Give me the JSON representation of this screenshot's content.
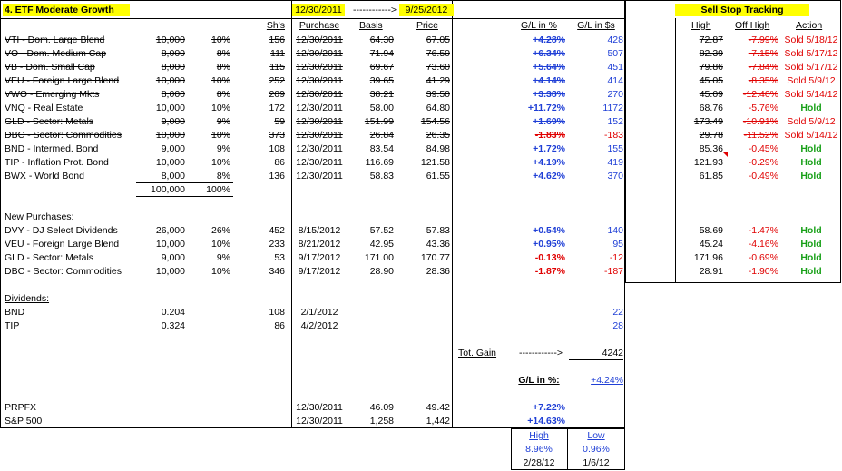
{
  "header": {
    "title": "4. ETF Moderate Growth",
    "date_start": "12/30/2011",
    "arrow": "------------>",
    "date_end": "9/25/2012",
    "sell_stop_title": "Sell Stop Tracking"
  },
  "columns": {
    "shares": "Sh's",
    "purchase": "Purchase",
    "basis": "Basis",
    "price": "Price",
    "gl_pct": "G/L in %",
    "gl_usd": "G/L in $s",
    "high": "High",
    "off_high": "Off High",
    "action": "Action"
  },
  "holdings": [
    {
      "name": "VTI - Dom. Large Blend",
      "amount": "10,000",
      "pct": "10%",
      "shares": "156",
      "date": "12/30/2011",
      "basis": "64.30",
      "price": "67.05",
      "gl_pct": "+4.28%",
      "gl_usd": "428",
      "high": "72.87",
      "off_high": "-7.99%",
      "action": "Sold 5/18/12",
      "sold": true
    },
    {
      "name": "VO - Dom. Medium Cap",
      "amount": "8,000",
      "pct": "8%",
      "shares": "111",
      "date": "12/30/2011",
      "basis": "71.94",
      "price": "76.50",
      "gl_pct": "+6.34%",
      "gl_usd": "507",
      "high": "82.39",
      "off_high": "-7.15%",
      "action": "Sold 5/17/12",
      "sold": true
    },
    {
      "name": "VB - Dom. Small Cap",
      "amount": "8,000",
      "pct": "8%",
      "shares": "115",
      "date": "12/30/2011",
      "basis": "69.67",
      "price": "73.60",
      "gl_pct": "+5.64%",
      "gl_usd": "451",
      "high": "79.86",
      "off_high": "-7.84%",
      "action": "Sold 5/17/12",
      "sold": true
    },
    {
      "name": "VEU - Foreign Large Blend",
      "amount": "10,000",
      "pct": "10%",
      "shares": "252",
      "date": "12/30/2011",
      "basis": "39.65",
      "price": "41.29",
      "gl_pct": "+4.14%",
      "gl_usd": "414",
      "high": "45.05",
      "off_high": "-8.35%",
      "action": "Sold 5/9/12",
      "sold": true
    },
    {
      "name": "VWO - Emerging Mkts",
      "amount": "8,000",
      "pct": "8%",
      "shares": "209",
      "date": "12/30/2011",
      "basis": "38.21",
      "price": "39.50",
      "gl_pct": "+3.38%",
      "gl_usd": "270",
      "high": "45.09",
      "off_high": "-12.40%",
      "action": "Sold 5/14/12",
      "sold": true
    },
    {
      "name": "VNQ - Real Estate",
      "amount": "10,000",
      "pct": "10%",
      "shares": "172",
      "date": "12/30/2011",
      "basis": "58.00",
      "price": "64.80",
      "gl_pct": "+11.72%",
      "gl_usd": "1172",
      "high": "68.76",
      "off_high": "-5.76%",
      "action": "Hold",
      "sold": false
    },
    {
      "name": "GLD - Sector: Metals",
      "amount": "9,000",
      "pct": "9%",
      "shares": "59",
      "date": "12/30/2011",
      "basis": "151.99",
      "price": "154.56",
      "gl_pct": "+1.69%",
      "gl_usd": "152",
      "high": "173.49",
      "off_high": "-10.91%",
      "action": "Sold 5/9/12",
      "sold": true
    },
    {
      "name": "DBC - Sector: Commodities",
      "amount": "10,000",
      "pct": "10%",
      "shares": "373",
      "date": "12/30/2011",
      "basis": "26.84",
      "price": "26.35",
      "gl_pct": "-1.83%",
      "gl_usd": "-183",
      "high": "29.78",
      "off_high": "-11.52%",
      "action": "Sold 5/14/12",
      "sold": true
    },
    {
      "name": "BND - Intermed. Bond",
      "amount": "9,000",
      "pct": "9%",
      "shares": "108",
      "date": "12/30/2011",
      "basis": "83.54",
      "price": "84.98",
      "gl_pct": "+1.72%",
      "gl_usd": "155",
      "high": "85.36",
      "off_high": "-0.45%",
      "action": "Hold",
      "sold": false
    },
    {
      "name": "TIP - Inflation Prot. Bond",
      "amount": "10,000",
      "pct": "10%",
      "shares": "86",
      "date": "12/30/2011",
      "basis": "116.69",
      "price": "121.58",
      "gl_pct": "+4.19%",
      "gl_usd": "419",
      "high": "121.93",
      "off_high": "-0.29%",
      "action": "Hold",
      "sold": false
    },
    {
      "name": "BWX - World Bond",
      "amount": "8,000",
      "pct": "8%",
      "shares": "136",
      "date": "12/30/2011",
      "basis": "58.83",
      "price": "61.55",
      "gl_pct": "+4.62%",
      "gl_usd": "370",
      "high": "61.85",
      "off_high": "-0.49%",
      "action": "Hold",
      "sold": false
    }
  ],
  "totals": {
    "amount": "100,000",
    "pct": "100%"
  },
  "new_purchases": {
    "label": "New Purchases:",
    "rows": [
      {
        "name": "DVY - DJ Select Dividends",
        "amount": "26,000",
        "pct": "26%",
        "shares": "452",
        "date": "8/15/2012",
        "basis": "57.52",
        "price": "57.83",
        "gl_pct": "+0.54%",
        "gl_usd": "140",
        "high": "58.69",
        "off_high": "-1.47%",
        "action": "Hold"
      },
      {
        "name": "VEU - Foreign Large Blend",
        "amount": "10,000",
        "pct": "10%",
        "shares": "233",
        "date": "8/21/2012",
        "basis": "42.95",
        "price": "43.36",
        "gl_pct": "+0.95%",
        "gl_usd": "95",
        "high": "45.24",
        "off_high": "-4.16%",
        "action": "Hold"
      },
      {
        "name": "GLD - Sector: Metals",
        "amount": "9,000",
        "pct": "9%",
        "shares": "53",
        "date": "9/17/2012",
        "basis": "171.00",
        "price": "170.77",
        "gl_pct": "-0.13%",
        "gl_usd": "-12",
        "high": "171.96",
        "off_high": "-0.69%",
        "action": "Hold"
      },
      {
        "name": "DBC - Sector: Commodities",
        "amount": "10,000",
        "pct": "10%",
        "shares": "346",
        "date": "9/17/2012",
        "basis": "28.90",
        "price": "28.36",
        "gl_pct": "-1.87%",
        "gl_usd": "-187",
        "high": "28.91",
        "off_high": "-1.90%",
        "action": "Hold"
      }
    ]
  },
  "dividends": {
    "label": "Dividends:",
    "rows": [
      {
        "name": "BND",
        "amount": "0.204",
        "shares": "108",
        "date": "2/1/2012",
        "gl_usd": "22"
      },
      {
        "name": "TIP",
        "amount": "0.324",
        "shares": "86",
        "date": "4/2/2012",
        "gl_usd": "28"
      }
    ]
  },
  "summary": {
    "tot_gain_label": "Tot. Gain",
    "tot_gain_arrow": "------------>",
    "tot_gain_value": "4242",
    "gl_pct_label": "G/L in %:",
    "gl_pct_value": "+4.24%"
  },
  "benchmarks": [
    {
      "name": "PRPFX",
      "date": "12/30/2011",
      "basis": "46.09",
      "price": "49.42",
      "gl_pct": "+7.22%"
    },
    {
      "name": "S&P 500",
      "date": "12/30/2011",
      "basis": "1,258",
      "price": "1,442",
      "gl_pct": "+14.63%"
    }
  ],
  "high_low": {
    "high_label": "High",
    "low_label": "Low",
    "high_value": "8.96%",
    "low_value": "0.96%",
    "high_date": "2/28/12",
    "low_date": "1/6/12"
  },
  "colors": {
    "positive": "#1f3fd6",
    "negative": "#e00000",
    "hold": "#18a018",
    "highlight": "#ffff00"
  }
}
